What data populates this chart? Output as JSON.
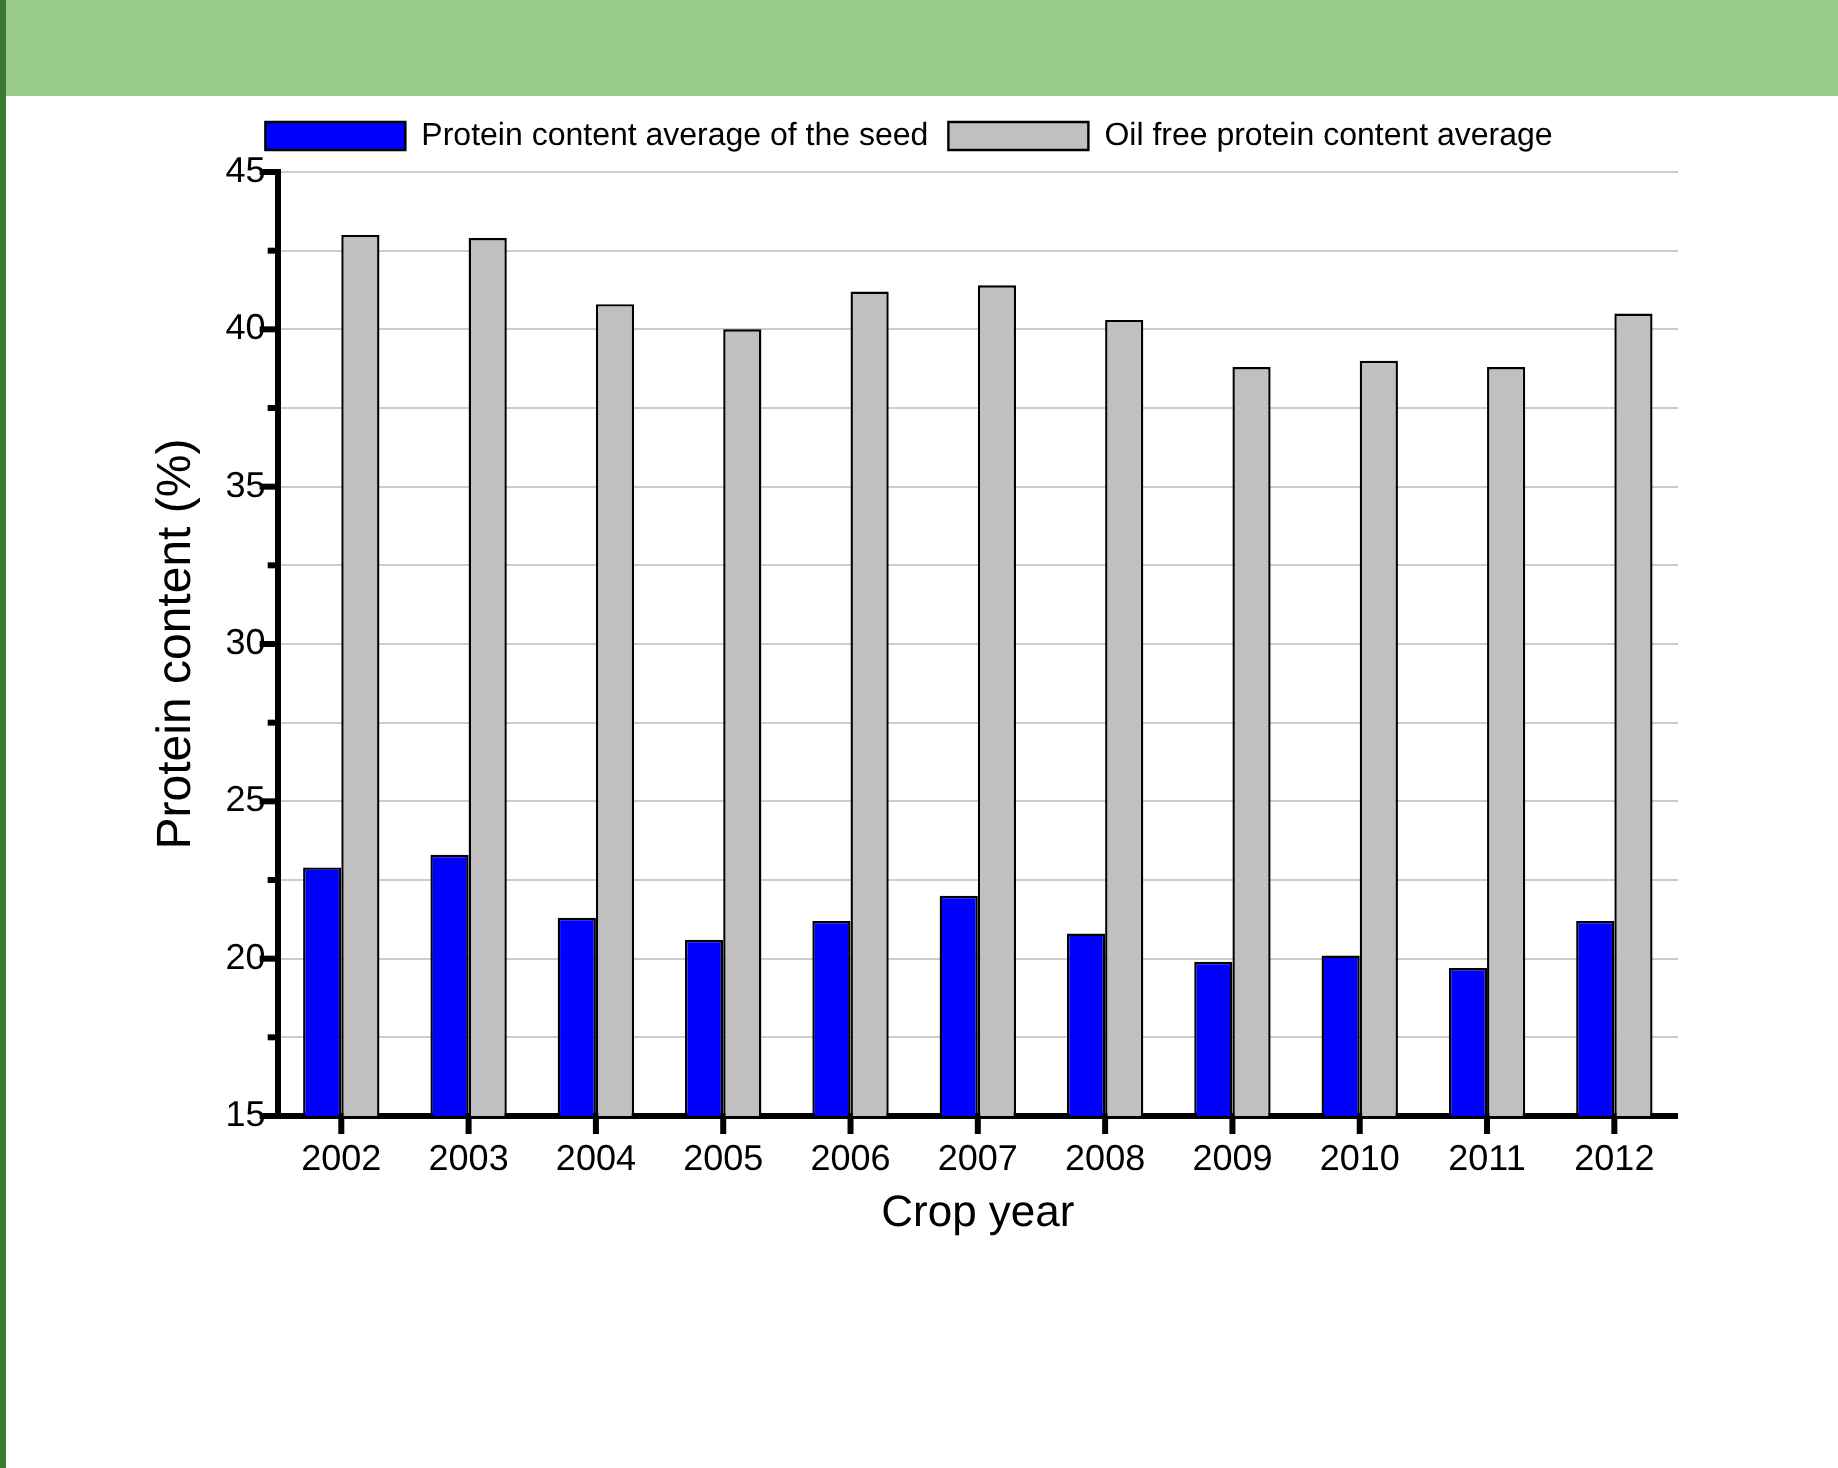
{
  "chart_data": {
    "type": "bar",
    "xlabel": "Crop year",
    "ylabel": "Protein content (%)",
    "categories": [
      "2002",
      "2003",
      "2004",
      "2005",
      "2006",
      "2007",
      "2008",
      "2009",
      "2010",
      "2011",
      "2012"
    ],
    "series": [
      {
        "name": "Protein content average of the seed",
        "color": "#0000ff",
        "values": [
          22.9,
          23.3,
          21.3,
          20.6,
          21.2,
          22.0,
          20.8,
          19.9,
          20.1,
          19.7,
          21.2
        ]
      },
      {
        "name": "Oil free protein content average",
        "color": "#c0c0c0",
        "values": [
          43.0,
          42.9,
          40.8,
          40.0,
          41.2,
          41.4,
          40.3,
          38.8,
          39.0,
          38.8,
          40.5
        ]
      }
    ],
    "ylim": [
      15,
      45
    ],
    "yticks": [
      15,
      {
        "value": 17.5,
        "label": null
      },
      20,
      {
        "value": 22.5,
        "label": null
      },
      25,
      {
        "value": 27.5,
        "label": null
      },
      30,
      {
        "value": 32.5,
        "label": null
      },
      35,
      {
        "value": 37.5,
        "label": null
      },
      40,
      {
        "value": 42.5,
        "label": null
      },
      45
    ],
    "grid": "y",
    "legend": "top"
  }
}
